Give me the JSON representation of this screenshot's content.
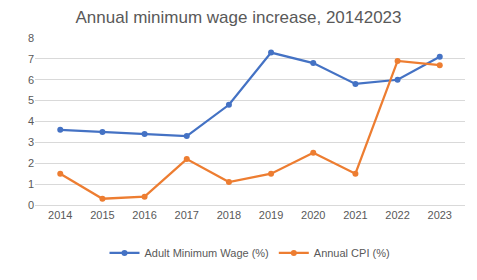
{
  "chart_data": {
    "type": "line",
    "title": "Annual minimum wage increase, 20142023",
    "categories": [
      "2014",
      "2015",
      "2016",
      "2017",
      "2018",
      "2019",
      "2020",
      "2021",
      "2022",
      "2023"
    ],
    "series": [
      {
        "name": "Adult Minimum Wage (%)",
        "color": "#4472c4",
        "marker": "circle",
        "line_style": "solid",
        "values": [
          3.6,
          3.5,
          3.4,
          3.3,
          4.8,
          7.3,
          6.8,
          5.8,
          6.0,
          7.1
        ]
      },
      {
        "name": "Annual CPI (%)",
        "color": "#ed7d31",
        "marker": "circle",
        "line_style": "solid",
        "values": [
          1.5,
          0.3,
          0.4,
          2.2,
          1.1,
          1.5,
          2.5,
          1.5,
          6.9,
          6.7
        ]
      }
    ],
    "ylim": [
      0,
      8
    ],
    "yticks": [
      0,
      1,
      2,
      3,
      4,
      5,
      6,
      7,
      8
    ],
    "grid": true,
    "legend": "bottom"
  }
}
